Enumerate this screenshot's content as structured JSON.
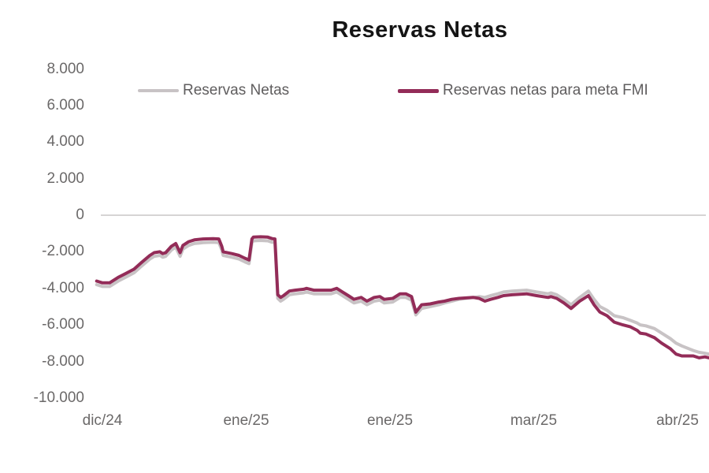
{
  "title": "Reservas Netas",
  "legend": {
    "items": [
      {
        "label": "Reservas Netas",
        "color": "#c8c3c5"
      },
      {
        "label": "Reservas netas para meta FMI",
        "color": "#932c58"
      }
    ]
  },
  "colors": {
    "title_text": "#141414",
    "tick_text": "#6b6969",
    "legend_text": "#5f5d5e",
    "zero_axis_line": "#c9c5c5",
    "series_gray": "#c8c3c5",
    "series_maroon": "#932c58",
    "background": "#ffffff"
  },
  "chart_data": {
    "type": "line",
    "title": "Reservas Netas",
    "xlabel": "",
    "ylabel": "",
    "grid": false,
    "zero_axis_line": true,
    "legend_position": "top",
    "ylim": [
      -10000,
      8000
    ],
    "y_ticks": [
      8000,
      6000,
      4000,
      2000,
      0,
      -2000,
      -4000,
      -6000,
      -8000,
      -10000
    ],
    "y_tick_labels": [
      "8.000",
      "6.000",
      "4.000",
      "2.000",
      "0",
      "-2.000",
      "-4.000",
      "-6.000",
      "-8.000",
      "-10.000"
    ],
    "x_tick_labels": [
      "dic/24",
      "ene/25",
      "ene/25",
      "mar/25",
      "abr/25"
    ],
    "x_tick_positions": [
      0,
      1,
      2,
      3,
      4
    ],
    "xlim": [
      -0.05,
      4.22
    ],
    "x_unit_note": "months, 0 = dic/24",
    "series": [
      {
        "name": "Reservas Netas",
        "color": "#c8c3c5",
        "stroke_width": 4,
        "points": [
          [
            -0.04,
            -3800
          ],
          [
            0.0,
            -3900
          ],
          [
            0.05,
            -3900
          ],
          [
            0.11,
            -3600
          ],
          [
            0.16,
            -3400
          ],
          [
            0.22,
            -3150
          ],
          [
            0.27,
            -2800
          ],
          [
            0.33,
            -2400
          ],
          [
            0.36,
            -2250
          ],
          [
            0.4,
            -2200
          ],
          [
            0.42,
            -2300
          ],
          [
            0.44,
            -2250
          ],
          [
            0.48,
            -1900
          ],
          [
            0.51,
            -1750
          ],
          [
            0.54,
            -2250
          ],
          [
            0.56,
            -1850
          ],
          [
            0.6,
            -1650
          ],
          [
            0.64,
            -1550
          ],
          [
            0.7,
            -1500
          ],
          [
            0.77,
            -1480
          ],
          [
            0.81,
            -1500
          ],
          [
            0.83,
            -1900
          ],
          [
            0.84,
            -2200
          ],
          [
            0.9,
            -2300
          ],
          [
            0.95,
            -2400
          ],
          [
            0.99,
            -2550
          ],
          [
            1.02,
            -2650
          ],
          [
            1.04,
            -1500
          ],
          [
            1.05,
            -1400
          ],
          [
            1.1,
            -1380
          ],
          [
            1.15,
            -1400
          ],
          [
            1.18,
            -1480
          ],
          [
            1.2,
            -1500
          ],
          [
            1.22,
            -4550
          ],
          [
            1.24,
            -4700
          ],
          [
            1.26,
            -4600
          ],
          [
            1.3,
            -4350
          ],
          [
            1.34,
            -4300
          ],
          [
            1.4,
            -4250
          ],
          [
            1.42,
            -4200
          ],
          [
            1.47,
            -4300
          ],
          [
            1.53,
            -4300
          ],
          [
            1.59,
            -4300
          ],
          [
            1.63,
            -4200
          ],
          [
            1.67,
            -4400
          ],
          [
            1.71,
            -4600
          ],
          [
            1.75,
            -4800
          ],
          [
            1.8,
            -4700
          ],
          [
            1.84,
            -4900
          ],
          [
            1.89,
            -4700
          ],
          [
            1.93,
            -4650
          ],
          [
            1.96,
            -4800
          ],
          [
            2.02,
            -4750
          ],
          [
            2.07,
            -4500
          ],
          [
            2.11,
            -4500
          ],
          [
            2.15,
            -4650
          ],
          [
            2.18,
            -5450
          ],
          [
            2.22,
            -5100
          ],
          [
            2.28,
            -5000
          ],
          [
            2.34,
            -4900
          ],
          [
            2.38,
            -4800
          ],
          [
            2.43,
            -4700
          ],
          [
            2.48,
            -4600
          ],
          [
            2.58,
            -4500
          ],
          [
            2.62,
            -4450
          ],
          [
            2.66,
            -4500
          ],
          [
            2.7,
            -4400
          ],
          [
            2.75,
            -4300
          ],
          [
            2.79,
            -4200
          ],
          [
            2.85,
            -4150
          ],
          [
            2.95,
            -4100
          ],
          [
            3.02,
            -4200
          ],
          [
            3.1,
            -4300
          ],
          [
            3.12,
            -4250
          ],
          [
            3.16,
            -4350
          ],
          [
            3.21,
            -4600
          ],
          [
            3.26,
            -4900
          ],
          [
            3.32,
            -4500
          ],
          [
            3.38,
            -4150
          ],
          [
            3.42,
            -4600
          ],
          [
            3.46,
            -5000
          ],
          [
            3.51,
            -5200
          ],
          [
            3.56,
            -5500
          ],
          [
            3.62,
            -5600
          ],
          [
            3.67,
            -5750
          ],
          [
            3.72,
            -5900
          ],
          [
            3.74,
            -6000
          ],
          [
            3.78,
            -6050
          ],
          [
            3.84,
            -6200
          ],
          [
            3.89,
            -6450
          ],
          [
            3.95,
            -6750
          ],
          [
            3.99,
            -7000
          ],
          [
            4.03,
            -7150
          ],
          [
            4.11,
            -7400
          ],
          [
            4.15,
            -7500
          ],
          [
            4.19,
            -7550
          ],
          [
            4.22,
            -7600
          ]
        ]
      },
      {
        "name": "Reservas netas para meta FMI",
        "color": "#932c58",
        "stroke_width": 4,
        "points": [
          [
            -0.04,
            -3600
          ],
          [
            0.0,
            -3700
          ],
          [
            0.05,
            -3700
          ],
          [
            0.11,
            -3400
          ],
          [
            0.16,
            -3200
          ],
          [
            0.22,
            -2950
          ],
          [
            0.27,
            -2600
          ],
          [
            0.33,
            -2200
          ],
          [
            0.36,
            -2050
          ],
          [
            0.4,
            -2000
          ],
          [
            0.42,
            -2100
          ],
          [
            0.44,
            -2050
          ],
          [
            0.48,
            -1700
          ],
          [
            0.51,
            -1550
          ],
          [
            0.54,
            -2050
          ],
          [
            0.56,
            -1650
          ],
          [
            0.6,
            -1450
          ],
          [
            0.64,
            -1350
          ],
          [
            0.7,
            -1300
          ],
          [
            0.77,
            -1280
          ],
          [
            0.81,
            -1300
          ],
          [
            0.83,
            -1700
          ],
          [
            0.84,
            -2000
          ],
          [
            0.9,
            -2100
          ],
          [
            0.95,
            -2200
          ],
          [
            0.99,
            -2350
          ],
          [
            1.02,
            -2450
          ],
          [
            1.04,
            -1300
          ],
          [
            1.05,
            -1200
          ],
          [
            1.1,
            -1180
          ],
          [
            1.15,
            -1200
          ],
          [
            1.18,
            -1280
          ],
          [
            1.2,
            -1300
          ],
          [
            1.22,
            -4350
          ],
          [
            1.24,
            -4500
          ],
          [
            1.26,
            -4400
          ],
          [
            1.3,
            -4150
          ],
          [
            1.34,
            -4100
          ],
          [
            1.4,
            -4050
          ],
          [
            1.42,
            -4000
          ],
          [
            1.47,
            -4100
          ],
          [
            1.53,
            -4100
          ],
          [
            1.59,
            -4100
          ],
          [
            1.63,
            -4000
          ],
          [
            1.67,
            -4200
          ],
          [
            1.71,
            -4400
          ],
          [
            1.75,
            -4600
          ],
          [
            1.8,
            -4500
          ],
          [
            1.84,
            -4700
          ],
          [
            1.89,
            -4500
          ],
          [
            1.93,
            -4450
          ],
          [
            1.96,
            -4600
          ],
          [
            2.02,
            -4550
          ],
          [
            2.07,
            -4300
          ],
          [
            2.11,
            -4300
          ],
          [
            2.15,
            -4450
          ],
          [
            2.18,
            -5300
          ],
          [
            2.22,
            -4900
          ],
          [
            2.28,
            -4850
          ],
          [
            2.34,
            -4750
          ],
          [
            2.38,
            -4700
          ],
          [
            2.43,
            -4600
          ],
          [
            2.48,
            -4550
          ],
          [
            2.58,
            -4500
          ],
          [
            2.62,
            -4550
          ],
          [
            2.66,
            -4700
          ],
          [
            2.7,
            -4600
          ],
          [
            2.75,
            -4500
          ],
          [
            2.79,
            -4400
          ],
          [
            2.85,
            -4350
          ],
          [
            2.95,
            -4300
          ],
          [
            3.02,
            -4400
          ],
          [
            3.1,
            -4500
          ],
          [
            3.12,
            -4450
          ],
          [
            3.16,
            -4550
          ],
          [
            3.21,
            -4800
          ],
          [
            3.26,
            -5100
          ],
          [
            3.32,
            -4700
          ],
          [
            3.38,
            -4400
          ],
          [
            3.42,
            -4900
          ],
          [
            3.46,
            -5300
          ],
          [
            3.51,
            -5500
          ],
          [
            3.56,
            -5850
          ],
          [
            3.62,
            -6000
          ],
          [
            3.67,
            -6100
          ],
          [
            3.72,
            -6300
          ],
          [
            3.74,
            -6450
          ],
          [
            3.78,
            -6500
          ],
          [
            3.84,
            -6700
          ],
          [
            3.89,
            -7000
          ],
          [
            3.95,
            -7300
          ],
          [
            3.99,
            -7600
          ],
          [
            4.03,
            -7700
          ],
          [
            4.11,
            -7700
          ],
          [
            4.15,
            -7800
          ],
          [
            4.19,
            -7750
          ],
          [
            4.22,
            -7800
          ]
        ]
      }
    ]
  }
}
